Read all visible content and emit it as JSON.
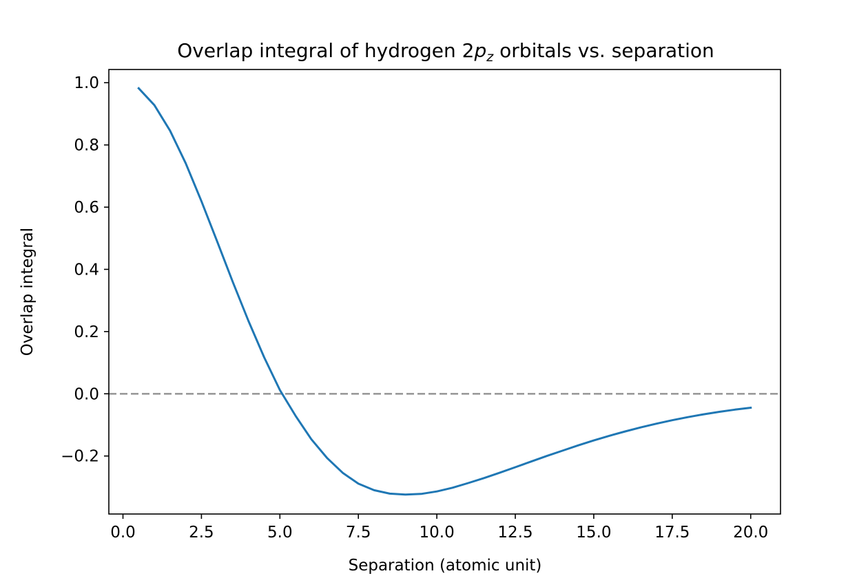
{
  "chart_data": {
    "type": "line",
    "title": {
      "prefix": "Overlap integral of hydrogen 2",
      "symbol": "p",
      "subscript": "z",
      "suffix": " orbitals vs. separation"
    },
    "xlabel": "Separation (atomic unit)",
    "ylabel": "Overlap integral",
    "xlim": [
      -0.45,
      20.95
    ],
    "ylim": [
      -0.3865,
      1.0425
    ],
    "x_ticks": [
      0.0,
      2.5,
      5.0,
      7.5,
      10.0,
      12.5,
      15.0,
      17.5,
      20.0
    ],
    "x_tick_labels": [
      "0.0",
      "2.5",
      "5.0",
      "7.5",
      "10.0",
      "12.5",
      "15.0",
      "17.5",
      "20.0"
    ],
    "y_ticks": [
      -0.2,
      0.0,
      0.2,
      0.4,
      0.6,
      0.8,
      1.0
    ],
    "y_tick_labels": [
      "−0.2",
      "0.0",
      "0.2",
      "0.4",
      "0.6",
      "0.8",
      "1.0"
    ],
    "grid": false,
    "reference_line": {
      "y": 0.0,
      "style": "dashed",
      "color": "#999999"
    },
    "series": [
      {
        "color": "#1f77b4",
        "x": [
          0.5,
          1.0,
          1.5,
          2.0,
          2.5,
          3.0,
          3.5,
          4.0,
          4.5,
          5.0,
          5.5,
          6.0,
          6.5,
          7.0,
          7.5,
          8.0,
          8.5,
          9.0,
          9.5,
          10.0,
          10.5,
          11.0,
          11.5,
          12.0,
          12.5,
          13.0,
          13.5,
          14.0,
          14.5,
          15.0,
          15.5,
          16.0,
          16.5,
          17.0,
          17.5,
          18.0,
          18.5,
          19.0,
          19.5,
          20.0
        ],
        "values": [
          0.982,
          0.928,
          0.846,
          0.741,
          0.619,
          0.49,
          0.359,
          0.234,
          0.117,
          0.012,
          -0.071,
          -0.146,
          -0.206,
          -0.254,
          -0.289,
          -0.31,
          -0.321,
          -0.324,
          -0.322,
          -0.314,
          -0.302,
          -0.287,
          -0.271,
          -0.254,
          -0.236,
          -0.218,
          -0.2,
          -0.183,
          -0.166,
          -0.15,
          -0.135,
          -0.121,
          -0.108,
          -0.096,
          -0.085,
          -0.075,
          -0.066,
          -0.058,
          -0.051,
          -0.045
        ]
      }
    ]
  }
}
